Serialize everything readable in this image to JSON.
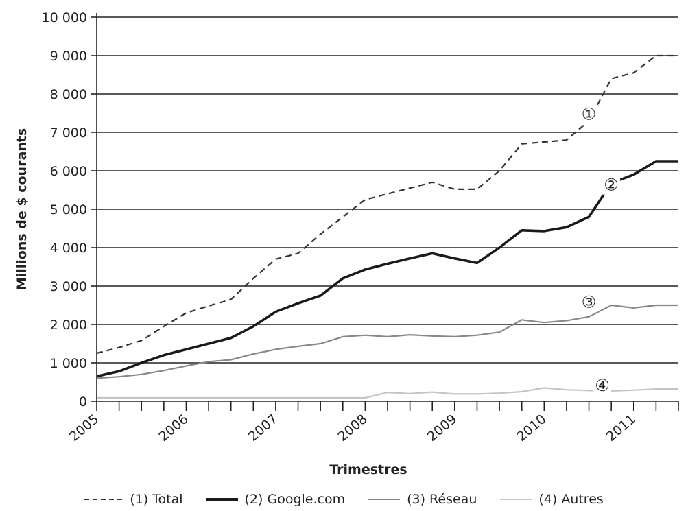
{
  "chart_data": {
    "type": "line",
    "xlabel": "Trimestres",
    "ylabel": "Millions de $ courants",
    "ylim": [
      0,
      10000
    ],
    "xlim": [
      2005,
      2011.5
    ],
    "y_ticks": [
      "0",
      "1 000",
      "2 000",
      "3 000",
      "4 000",
      "5 000",
      "6 000",
      "7 000",
      "8 000",
      "9 000",
      "10 000"
    ],
    "x_ticks": [
      "2005",
      "2006",
      "2007",
      "2008",
      "2009",
      "2010",
      "2011"
    ],
    "grid": "horizontal",
    "legend_position": "bottom",
    "x": [
      2005.0,
      2005.25,
      2005.5,
      2005.75,
      2006.0,
      2006.25,
      2006.5,
      2006.75,
      2007.0,
      2007.25,
      2007.5,
      2007.75,
      2008.0,
      2008.25,
      2008.5,
      2008.75,
      2009.0,
      2009.25,
      2009.5,
      2009.75,
      2010.0,
      2010.25,
      2010.5,
      2010.75,
      2011.0,
      2011.25,
      2011.5
    ],
    "series": [
      {
        "name": "(1) Total",
        "marker": "①",
        "style": "dashed",
        "color": "#333333",
        "values": [
          1250,
          1400,
          1580,
          1950,
          2300,
          2480,
          2650,
          3200,
          3700,
          3850,
          4350,
          4800,
          5250,
          5400,
          5550,
          5700,
          5520,
          5520,
          6000,
          6700,
          6750,
          6800,
          7300,
          8400,
          8550,
          9000,
          9000
        ]
      },
      {
        "name": "(2) Google.com",
        "marker": "②",
        "style": "solid-thick",
        "color": "#1a1a1a",
        "values": [
          650,
          780,
          1000,
          1200,
          1350,
          1500,
          1650,
          1950,
          2330,
          2550,
          2750,
          3200,
          3430,
          3580,
          3720,
          3850,
          3720,
          3600,
          4000,
          4450,
          4430,
          4530,
          4800,
          5680,
          5900,
          6250,
          6250
        ]
      },
      {
        "name": "(3) Réseau",
        "marker": "③",
        "style": "solid",
        "color": "#888888",
        "values": [
          600,
          640,
          700,
          800,
          920,
          1030,
          1080,
          1230,
          1350,
          1430,
          1500,
          1680,
          1720,
          1680,
          1730,
          1700,
          1680,
          1720,
          1800,
          2120,
          2050,
          2100,
          2200,
          2500,
          2430,
          2500,
          2500
        ]
      },
      {
        "name": "(4) Autres",
        "marker": "④",
        "style": "solid",
        "color": "#c4c4c4",
        "values": [
          90,
          90,
          90,
          90,
          90,
          90,
          90,
          90,
          90,
          90,
          90,
          90,
          90,
          230,
          200,
          240,
          190,
          190,
          210,
          250,
          350,
          300,
          280,
          270,
          290,
          320,
          320
        ]
      }
    ]
  }
}
